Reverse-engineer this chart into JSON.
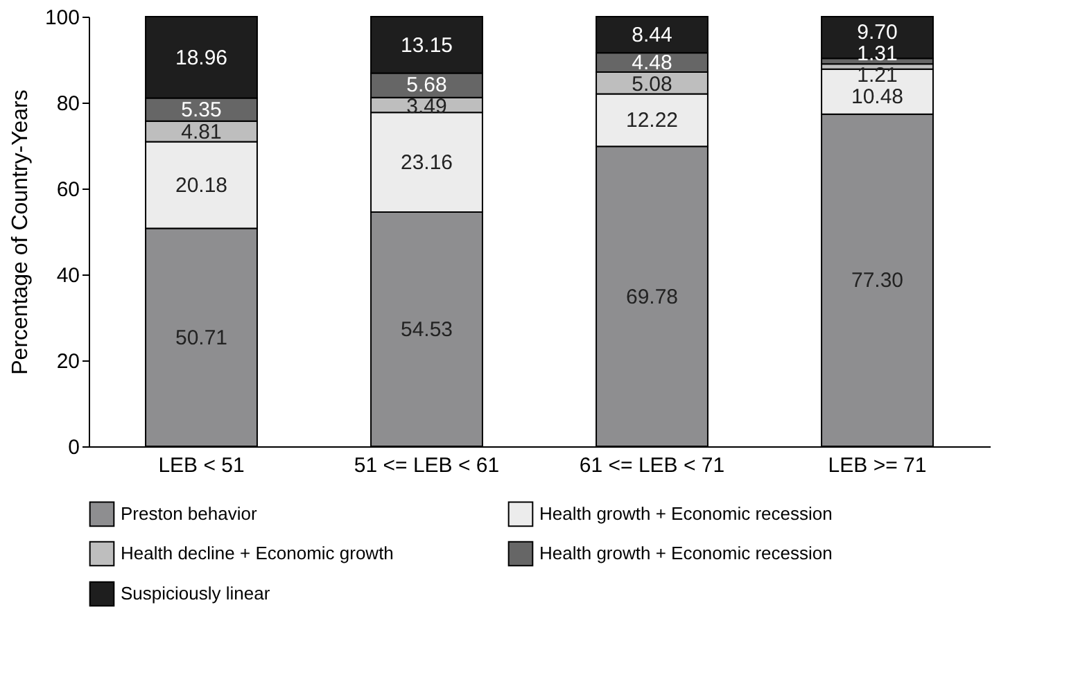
{
  "chart_data": {
    "type": "bar",
    "ylabel": "Percentage of Country-Years",
    "categories": [
      "LEB < 51",
      "51 <= LEB < 61",
      "61 <= LEB < 71",
      "LEB >= 71"
    ],
    "stacked": true,
    "data_labels": true,
    "legend": "bottom",
    "grid": false,
    "ylim": [
      0,
      100
    ],
    "yticks": [
      0,
      20,
      40,
      60,
      80,
      100
    ],
    "series": [
      {
        "name": "Preston behavior",
        "color": "#8e8e90",
        "values": [
          50.71,
          54.53,
          69.78,
          77.3
        ],
        "value_labels": [
          "50.71",
          "54.53",
          "69.78",
          "77.30"
        ]
      },
      {
        "name": "Health growth + Economic recession",
        "color": "#ececec",
        "values": [
          20.18,
          23.16,
          12.22,
          10.48
        ]
      },
      {
        "name": "Health decline + Economic growth",
        "color": "#bebebe",
        "values": [
          4.81,
          3.49,
          5.08,
          1.21
        ]
      },
      {
        "name": "Health growth + Economic recession",
        "color": "#666666",
        "values": [
          5.35,
          5.68,
          4.48,
          1.31
        ]
      },
      {
        "name": "Suspiciously linear",
        "color": "#1e1e1e",
        "values": [
          18.96,
          13.15,
          8.44,
          9.7
        ],
        "value_labels": [
          "18.96",
          "13.15",
          "8.44",
          "9.70"
        ]
      }
    ]
  }
}
